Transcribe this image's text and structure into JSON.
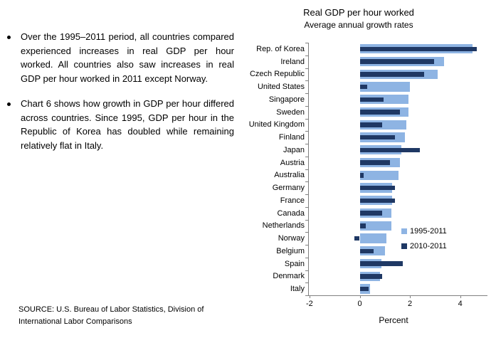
{
  "bullets": {
    "items": [
      "Over the 1995–2011 period, all countries compared experienced increases in real GDP per hour worked. All countries also saw increases in real GDP per hour worked in 2011 except Norway.",
      "Chart 6 shows how growth in GDP per hour differed across countries. Since 1995, GDP per hour in the Republic of Korea has doubled while remaining relatively flat in Italy."
    ]
  },
  "source": {
    "text": "SOURCE: U.S. Bureau of Labor Statistics, Division of International Labor Comparisons"
  },
  "chart_data": {
    "type": "bar",
    "orientation": "horizontal",
    "title": "Real GDP per hour worked",
    "subtitle": "Average annual growth rates",
    "xlabel": "Percent",
    "xlim": [
      -2,
      5
    ],
    "xticks": [
      -2,
      0,
      2,
      4
    ],
    "grid": false,
    "legend_position": "inside-right-middle",
    "axis_color": "#808080",
    "categories": [
      "Rep. of Korea",
      "Ireland",
      "Czech Republic",
      "United States",
      "Singapore",
      "Sweden",
      "United Kingdom",
      "Finland",
      "Japan",
      "Austria",
      "Australia",
      "Germany",
      "France",
      "Canada",
      "Netherlands",
      "Norway",
      "Belgium",
      "Spain",
      "Denmark",
      "Italy"
    ],
    "series": [
      {
        "name": "1995-2011",
        "color": "#8EB4E3",
        "values": [
          4.5,
          3.35,
          3.1,
          2.0,
          1.95,
          1.95,
          1.85,
          1.8,
          1.65,
          1.6,
          1.55,
          1.3,
          1.3,
          1.25,
          1.25,
          1.05,
          1.0,
          0.85,
          0.8,
          0.4
        ]
      },
      {
        "name": "2010-2011",
        "color": "#1F3864",
        "values": [
          4.65,
          2.95,
          2.55,
          0.3,
          0.95,
          1.6,
          0.9,
          1.4,
          2.4,
          1.2,
          0.15,
          1.4,
          1.4,
          0.9,
          0.25,
          -0.2,
          0.55,
          1.7,
          0.9,
          0.35
        ]
      }
    ]
  }
}
